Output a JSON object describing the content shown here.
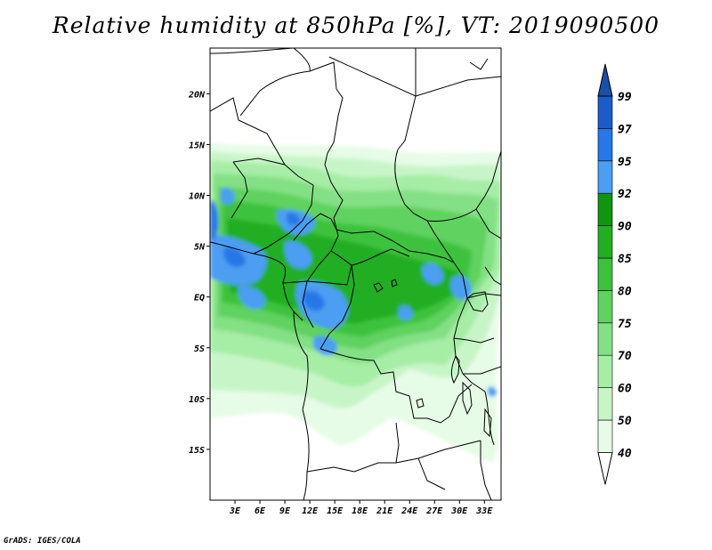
{
  "title": "Relative humidity at 850hPa [%], VT: 2019090500",
  "credit": "GrADS: IGES/COLA",
  "map": {
    "lon_range": [
      0,
      35
    ],
    "lat_range": [
      -20,
      24.5
    ],
    "lat_ticks": [
      {
        "value": 20,
        "label": "20N"
      },
      {
        "value": 15,
        "label": "15N"
      },
      {
        "value": 10,
        "label": "10N"
      },
      {
        "value": 5,
        "label": "5N"
      },
      {
        "value": 0,
        "label": "EQ"
      },
      {
        "value": -5,
        "label": "5S"
      },
      {
        "value": -10,
        "label": "10S"
      },
      {
        "value": -15,
        "label": "15S"
      }
    ],
    "lon_ticks": [
      {
        "value": 3,
        "label": "3E"
      },
      {
        "value": 6,
        "label": "6E"
      },
      {
        "value": 9,
        "label": "9E"
      },
      {
        "value": 12,
        "label": "12E"
      },
      {
        "value": 15,
        "label": "15E"
      },
      {
        "value": 18,
        "label": "18E"
      },
      {
        "value": 21,
        "label": "21E"
      },
      {
        "value": 24,
        "label": "24E"
      },
      {
        "value": 27,
        "label": "27E"
      },
      {
        "value": 30,
        "label": "30E"
      },
      {
        "value": 33,
        "label": "33E"
      }
    ]
  },
  "colorbar": {
    "levels": [
      "40",
      "50",
      "60",
      "70",
      "75",
      "80",
      "85",
      "90",
      "92",
      "95",
      "97",
      "99"
    ],
    "colors": [
      "#ffffff",
      "#e6fce6",
      "#c8f5c8",
      "#a6eda6",
      "#84e084",
      "#5fd25f",
      "#3cc23c",
      "#22ae22",
      "#0f950f",
      "#4c9ef2",
      "#2678e8",
      "#1c5cc8",
      "#1a4fa8"
    ]
  },
  "humidity_zones": [
    {
      "level": 1,
      "color": "#e6fce6"
    },
    {
      "level": 2,
      "color": "#c8f5c8"
    },
    {
      "level": 3,
      "color": "#a6eda6"
    },
    {
      "level": 4,
      "color": "#84e084"
    },
    {
      "level": 5,
      "color": "#5fd25f"
    },
    {
      "level": 6,
      "color": "#3cc23c"
    },
    {
      "level": 7,
      "color": "#22ae22"
    },
    {
      "level": 8,
      "color": "#4c9ef2"
    },
    {
      "level": 9,
      "color": "#2678e8"
    }
  ]
}
